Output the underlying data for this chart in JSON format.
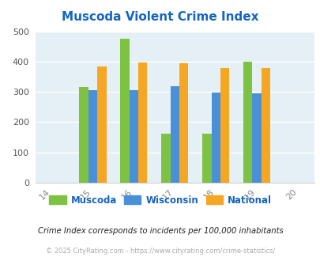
{
  "title": "Muscoda Violent Crime Index",
  "title_color": "#1565C0",
  "years": [
    2014,
    2015,
    2016,
    2017,
    2018,
    2019,
    2020
  ],
  "bar_years": [
    2015,
    2016,
    2017,
    2018,
    2019
  ],
  "muscoda": [
    315,
    475,
    163,
    163,
    400
  ],
  "wisconsin": [
    305,
    305,
    318,
    298,
    295
  ],
  "national": [
    385,
    398,
    395,
    380,
    380
  ],
  "muscoda_color": "#7DC242",
  "wisconsin_color": "#4A90D9",
  "national_color": "#F5A623",
  "bg_color": "#E4F0F5",
  "ylim": [
    0,
    500
  ],
  "yticks": [
    0,
    100,
    200,
    300,
    400,
    500
  ],
  "legend_labels": [
    "Muscoda",
    "Wisconsin",
    "National"
  ],
  "footnote1": "Crime Index corresponds to incidents per 100,000 inhabitants",
  "footnote2": "© 2025 CityRating.com - https://www.cityrating.com/crime-statistics/",
  "footnote1_color": "#222222",
  "footnote2_color": "#aaaaaa",
  "bar_width": 0.22
}
